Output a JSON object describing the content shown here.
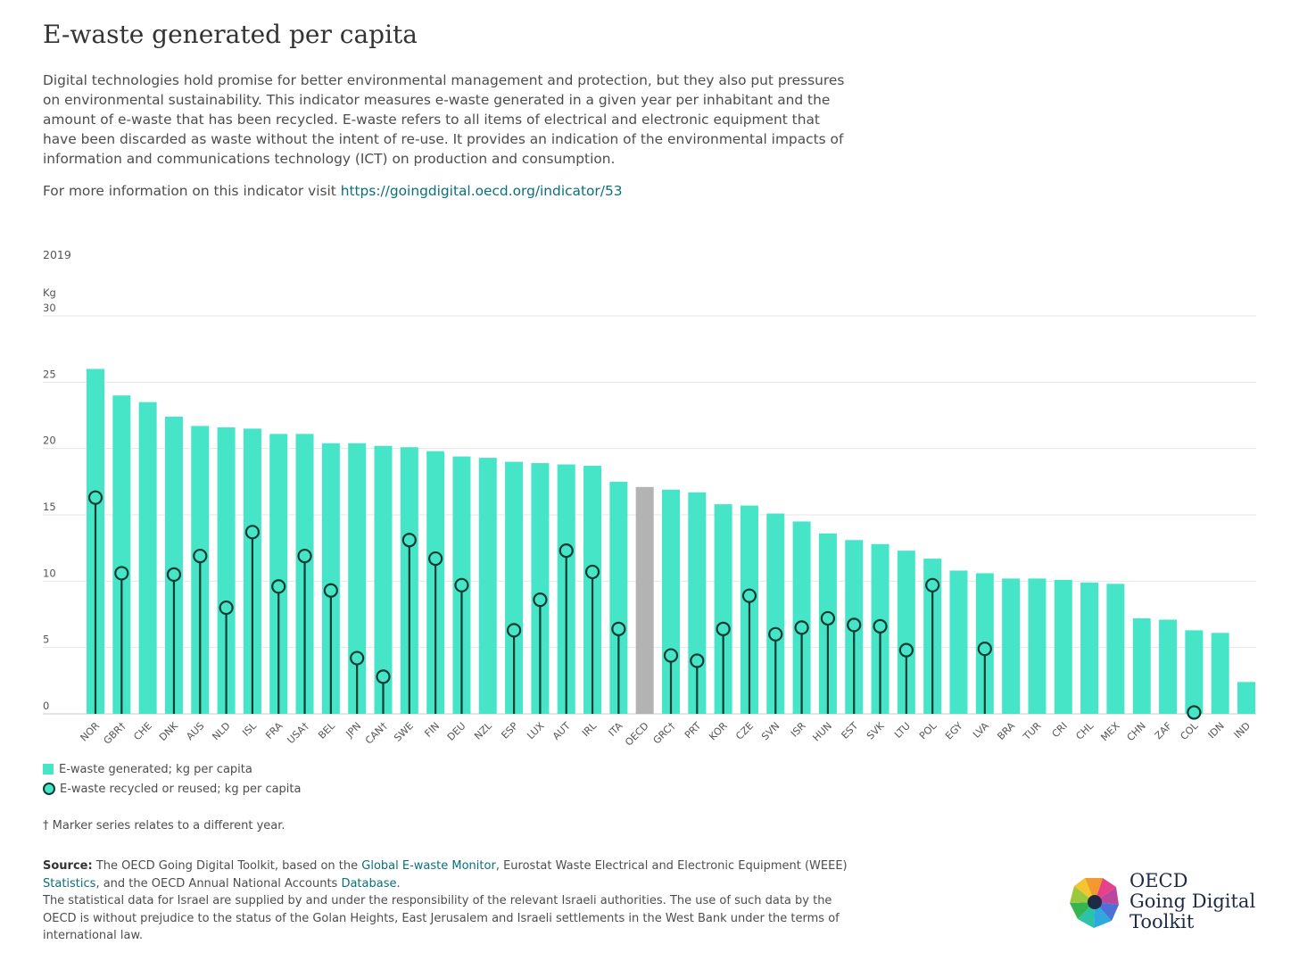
{
  "header": {
    "title": "E-waste generated per capita",
    "intro": "Digital technologies hold promise for better environmental management and protection, but they also put pressures on environmental sustainability. This indicator measures e-waste generated in a given year per inhabitant and the amount of e-waste that has been recycled. E-waste refers to all items of electrical and electronic equipment that have been discarded as waste without the intent of re-use. It provides an indication of the environmental impacts of information and communications technology (ICT) on production and consumption.",
    "more_prefix": "For more information on this indicator visit ",
    "more_link": "https://goingdigital.oecd.org/indicator/53"
  },
  "chart_data": {
    "type": "bar",
    "year_label": "2019",
    "ylabel": "Kg",
    "ylim": [
      0,
      30
    ],
    "yticks": [
      0,
      5,
      10,
      15,
      20,
      25,
      30
    ],
    "categories": [
      "NOR",
      "GBR†",
      "CHE",
      "DNK",
      "AUS",
      "NLD",
      "ISL",
      "FRA",
      "USA†",
      "BEL",
      "JPN",
      "CAN†",
      "SWE",
      "FIN",
      "DEU",
      "NZL",
      "ESP",
      "LUX",
      "AUT",
      "IRL",
      "ITA",
      "OECD",
      "GRC†",
      "PRT",
      "KOR",
      "CZE",
      "SVN",
      "ISR",
      "HUN",
      "EST",
      "SVK",
      "LTU",
      "POL",
      "EGY",
      "LVA",
      "BRA",
      "TUR",
      "CRI",
      "CHL",
      "MEX",
      "CHN",
      "ZAF",
      "COL",
      "IDN",
      "IND"
    ],
    "highlight_category": "OECD",
    "series": [
      {
        "name": "E-waste generated; kg per capita",
        "kind": "bar",
        "values": [
          26.0,
          24.0,
          23.5,
          22.4,
          21.7,
          21.6,
          21.5,
          21.1,
          21.1,
          20.4,
          20.4,
          20.2,
          20.1,
          19.8,
          19.4,
          19.3,
          19.0,
          18.9,
          18.8,
          18.7,
          17.5,
          17.1,
          16.9,
          16.7,
          15.8,
          15.7,
          15.1,
          14.5,
          13.6,
          13.1,
          12.8,
          12.3,
          11.7,
          10.8,
          10.6,
          10.2,
          10.2,
          10.1,
          9.9,
          9.8,
          7.2,
          7.1,
          6.3,
          6.1,
          2.4
        ]
      },
      {
        "name": "E-waste recycled or reused; kg per capita",
        "kind": "marker",
        "values": [
          16.3,
          10.6,
          null,
          10.5,
          11.9,
          8.0,
          13.7,
          9.6,
          11.9,
          9.3,
          4.2,
          2.8,
          13.1,
          11.7,
          9.7,
          null,
          6.3,
          8.6,
          12.3,
          10.7,
          6.4,
          null,
          4.4,
          4.0,
          6.4,
          8.9,
          6.0,
          6.5,
          7.2,
          6.7,
          6.6,
          4.8,
          9.7,
          null,
          4.9,
          null,
          null,
          null,
          null,
          null,
          null,
          null,
          0.1,
          null,
          null
        ]
      }
    ],
    "colors": {
      "bar": "#47e5c8",
      "highlight": "#b3b3b3",
      "marker_fill": "#47e5c8",
      "marker_stroke": "#0d3b33",
      "grid": "#e6e6e6",
      "axis_text": "#555555"
    }
  },
  "legend": {
    "generated": "E-waste generated; kg per capita",
    "recycled": "E-waste recycled or reused; kg per capita"
  },
  "footnote": "† Marker series relates to a different year.",
  "source": {
    "label": "Source:",
    "t1": " The OECD Going Digital Toolkit, based on the ",
    "link1": "Global E-waste Monitor",
    "t2": ", Eurostat Waste Electrical and Electronic Equipment (WEEE) ",
    "link2": "Statistics",
    "t3": ", and the OECD Annual National Accounts ",
    "link3": "Database",
    "t4": ".",
    "israel_note": "The statistical data for Israel are supplied by and under the responsibility of the relevant Israeli authorities. The use of such data by the OECD is without prejudice to the status of the Golan Heights, East Jerusalem and Israeli settlements in the West Bank under the terms of international law."
  },
  "logo": {
    "line1": "OECD",
    "line2": "Going Digital",
    "line3": "Toolkit"
  }
}
